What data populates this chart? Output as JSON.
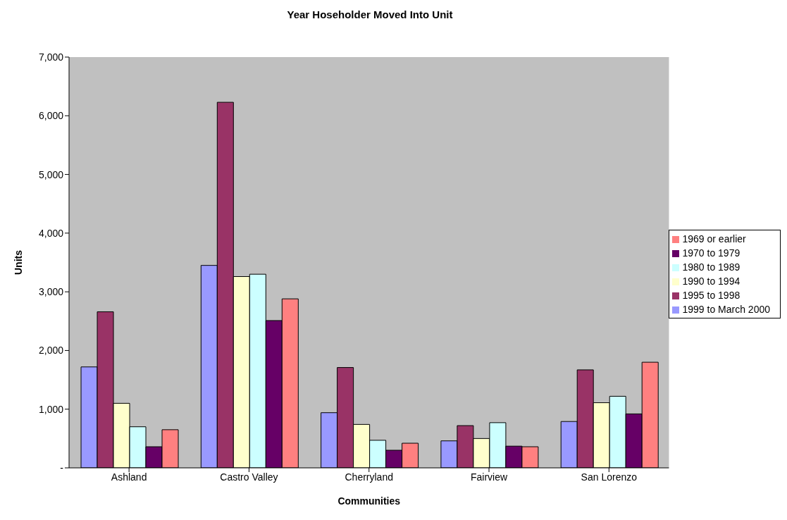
{
  "chart_data": {
    "type": "bar",
    "title": "Year Hoseholder Moved Into Unit",
    "xlabel": "Communities",
    "ylabel": "Units",
    "categories": [
      "Ashland",
      "Castro Valley",
      "Cherryland",
      "Fairview",
      "San Lorenzo"
    ],
    "series": [
      {
        "name": "1999 to March 2000",
        "color": "#9999ff",
        "values": [
          1720,
          3450,
          940,
          460,
          790
        ]
      },
      {
        "name": "1995 to 1998",
        "color": "#993366",
        "values": [
          2660,
          6230,
          1710,
          720,
          1670
        ]
      },
      {
        "name": "1990 to 1994",
        "color": "#ffffcc",
        "values": [
          1100,
          3260,
          740,
          500,
          1110
        ]
      },
      {
        "name": "1980 to 1989",
        "color": "#ccffff",
        "values": [
          700,
          3300,
          470,
          770,
          1220
        ]
      },
      {
        "name": "1970 to 1979",
        "color": "#660066",
        "values": [
          360,
          2510,
          300,
          370,
          920
        ]
      },
      {
        "name": "1969 or earlier",
        "color": "#ff8080",
        "values": [
          650,
          2880,
          420,
          360,
          1800
        ]
      }
    ],
    "ylim": [
      0,
      7000
    ],
    "yticks": [
      {
        "value": 0,
        "label": "-"
      },
      {
        "value": 1000,
        "label": "1,000"
      },
      {
        "value": 2000,
        "label": "2,000"
      },
      {
        "value": 3000,
        "label": "3,000"
      },
      {
        "value": 4000,
        "label": "4,000"
      },
      {
        "value": 5000,
        "label": "5,000"
      },
      {
        "value": 6000,
        "label": "6,000"
      },
      {
        "value": 7000,
        "label": "7,000"
      }
    ],
    "grid": false,
    "legend": "right"
  }
}
